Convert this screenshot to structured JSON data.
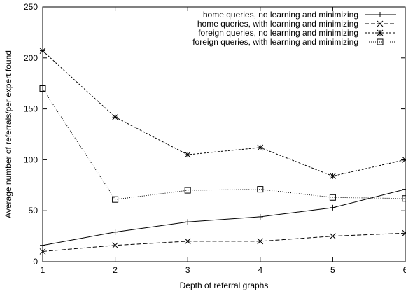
{
  "chart_data": {
    "type": "line",
    "title": "",
    "xlabel": "Depth of referral graphs",
    "ylabel": "Average number of referrals/per expert found",
    "xlim": [
      1,
      6
    ],
    "ylim": [
      0,
      250
    ],
    "xticks": [
      1,
      2,
      3,
      4,
      5,
      6
    ],
    "yticks": [
      0,
      50,
      100,
      150,
      200,
      250
    ],
    "grid": false,
    "legend_position": "top-right",
    "x": [
      1,
      2,
      3,
      4,
      5,
      6
    ],
    "series": [
      {
        "name": "home queries, no learning and minimizing",
        "values": [
          16,
          29,
          39,
          44,
          53,
          71
        ],
        "marker": "plus",
        "dash": "solid"
      },
      {
        "name": "home queries, with learning and minimizing",
        "values": [
          10,
          16,
          20,
          20,
          25,
          28
        ],
        "marker": "cross",
        "dash": "dashed"
      },
      {
        "name": "foreign queries, no learning and minimizing",
        "values": [
          207,
          142,
          105,
          112,
          84,
          100
        ],
        "marker": "star",
        "dash": "dashed-fine"
      },
      {
        "name": "foreign queries, with learning and minimizing",
        "values": [
          170,
          61,
          70,
          71,
          63,
          62
        ],
        "marker": "square",
        "dash": "dotted"
      }
    ]
  }
}
